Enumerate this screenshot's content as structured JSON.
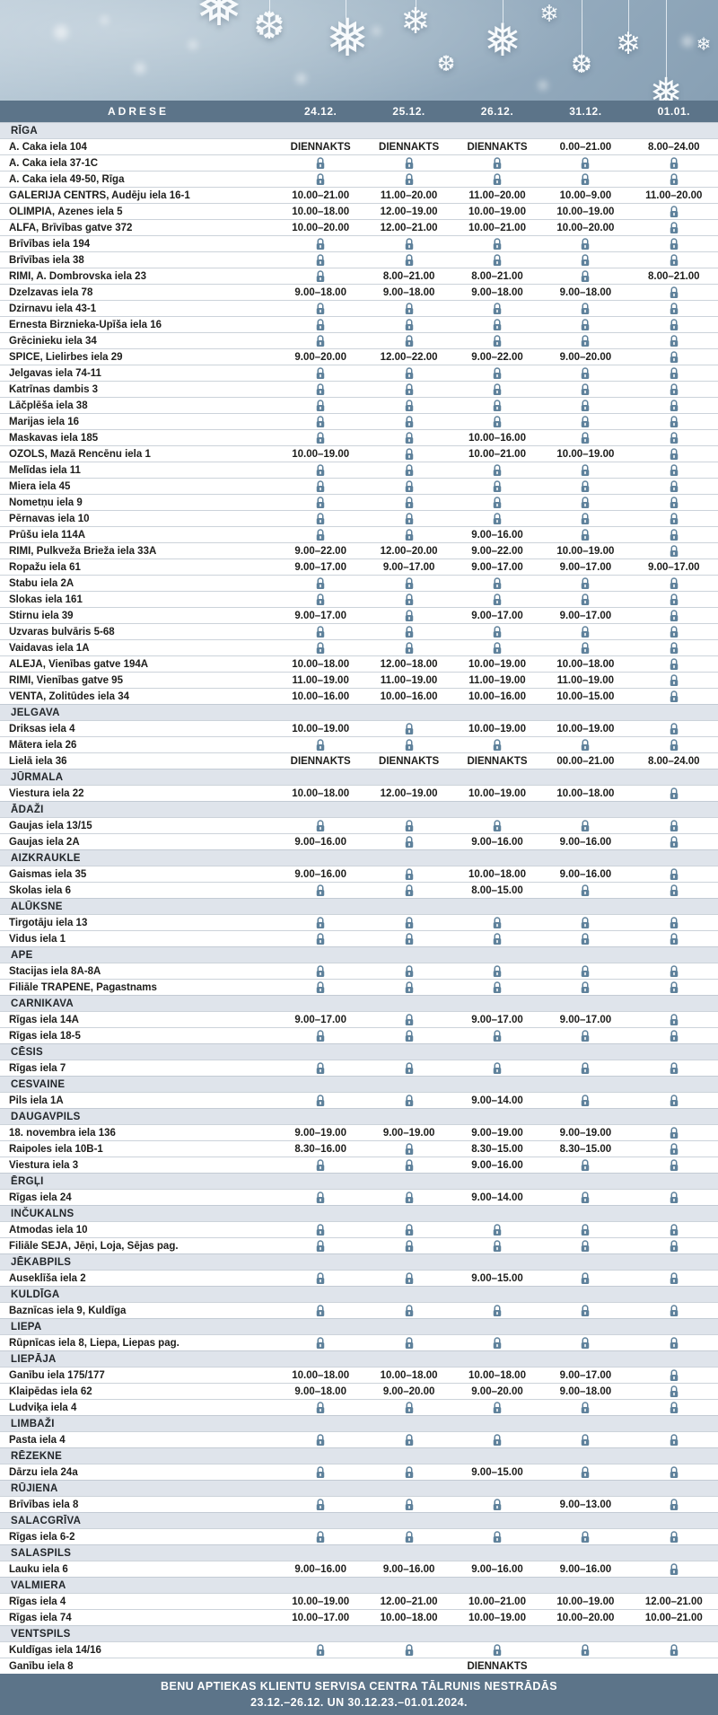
{
  "colors": {
    "header_bg": "#5c7489",
    "section_row_bg": "#dfe4eb",
    "lock_icon": "#5e819b",
    "banner_top": "#b9cad7",
    "banner_bottom": "#88a0b4"
  },
  "header": {
    "address_label": "ADRESE",
    "dates": [
      "24.12.",
      "25.12.",
      "26.12.",
      "31.12.",
      "01.01."
    ]
  },
  "closed_marker": "CLOSED",
  "sections": [
    {
      "name": "RĪGA",
      "rows": [
        {
          "address": "A. Čaka iela 104",
          "hours": [
            "DIENNAKTS",
            "DIENNAKTS",
            "DIENNAKTS",
            "0.00–21.00",
            "8.00–24.00"
          ]
        },
        {
          "address": "A. Čaka iela 37-1C",
          "hours": [
            "CLOSED",
            "CLOSED",
            "CLOSED",
            "CLOSED",
            "CLOSED"
          ]
        },
        {
          "address": "A. Čaka iela 49-50, Rīga",
          "hours": [
            "CLOSED",
            "CLOSED",
            "CLOSED",
            "CLOSED",
            "CLOSED"
          ]
        },
        {
          "address": "GALERIJA CENTRS, Audēju iela 16-1",
          "hours": [
            "10.00–21.00",
            "11.00–20.00",
            "11.00–20.00",
            "10.00–9.00",
            "11.00–20.00"
          ]
        },
        {
          "address": "OLIMPIA, Āzenes iela 5",
          "hours": [
            "10.00–18.00",
            "12.00–19.00",
            "10.00–19.00",
            "10.00–19.00",
            "CLOSED"
          ]
        },
        {
          "address": "ALFA, Brīvības gatve 372",
          "hours": [
            "10.00–20.00",
            "12.00–21.00",
            "10.00–21.00",
            "10.00–20.00",
            "CLOSED"
          ]
        },
        {
          "address": "Brīvības iela 194",
          "hours": [
            "CLOSED",
            "CLOSED",
            "CLOSED",
            "CLOSED",
            "CLOSED"
          ]
        },
        {
          "address": "Brīvības iela 38",
          "hours": [
            "CLOSED",
            "CLOSED",
            "CLOSED",
            "CLOSED",
            "CLOSED"
          ]
        },
        {
          "address": "RIMI, A. Dombrovska iela 23",
          "hours": [
            "CLOSED",
            "8.00–21.00",
            "8.00–21.00",
            "CLOSED",
            "8.00–21.00"
          ]
        },
        {
          "address": "Dzelzavas iela 78",
          "hours": [
            "9.00–18.00",
            "9.00–18.00",
            "9.00–18.00",
            "9.00–18.00",
            "CLOSED"
          ]
        },
        {
          "address": "Dzirnavu iela 43-1",
          "hours": [
            "CLOSED",
            "CLOSED",
            "CLOSED",
            "CLOSED",
            "CLOSED"
          ]
        },
        {
          "address": "Ernesta Birznieka-Upīša iela 16",
          "hours": [
            "CLOSED",
            "CLOSED",
            "CLOSED",
            "CLOSED",
            "CLOSED"
          ]
        },
        {
          "address": "Grēcinieku iela 34",
          "hours": [
            "CLOSED",
            "CLOSED",
            "CLOSED",
            "CLOSED",
            "CLOSED"
          ]
        },
        {
          "address": "SPICE, Lielirbes iela 29",
          "hours": [
            "9.00–20.00",
            "12.00–22.00",
            "9.00–22.00",
            "9.00–20.00",
            "CLOSED"
          ]
        },
        {
          "address": "Jelgavas iela 74-11",
          "hours": [
            "CLOSED",
            "CLOSED",
            "CLOSED",
            "CLOSED",
            "CLOSED"
          ]
        },
        {
          "address": "Katrīnas dambis 3",
          "hours": [
            "CLOSED",
            "CLOSED",
            "CLOSED",
            "CLOSED",
            "CLOSED"
          ]
        },
        {
          "address": "Lāčplēša iela 38",
          "hours": [
            "CLOSED",
            "CLOSED",
            "CLOSED",
            "CLOSED",
            "CLOSED"
          ]
        },
        {
          "address": "Marijas iela 16",
          "hours": [
            "CLOSED",
            "CLOSED",
            "CLOSED",
            "CLOSED",
            "CLOSED"
          ]
        },
        {
          "address": "Maskavas iela 185",
          "hours": [
            "CLOSED",
            "CLOSED",
            "10.00–16.00",
            "CLOSED",
            "CLOSED"
          ]
        },
        {
          "address": "OZOLS, Mazā Rencēnu iela 1",
          "hours": [
            "10.00–19.00",
            "CLOSED",
            "10.00–21.00",
            "10.00–19.00",
            "CLOSED"
          ]
        },
        {
          "address": "Melīdas iela 11",
          "hours": [
            "CLOSED",
            "CLOSED",
            "CLOSED",
            "CLOSED",
            "CLOSED"
          ]
        },
        {
          "address": "Miera iela 45",
          "hours": [
            "CLOSED",
            "CLOSED",
            "CLOSED",
            "CLOSED",
            "CLOSED"
          ]
        },
        {
          "address": "Nometņu iela 9",
          "hours": [
            "CLOSED",
            "CLOSED",
            "CLOSED",
            "CLOSED",
            "CLOSED"
          ]
        },
        {
          "address": "Pērnavas iela 10",
          "hours": [
            "CLOSED",
            "CLOSED",
            "CLOSED",
            "CLOSED",
            "CLOSED"
          ]
        },
        {
          "address": "Prūšu iela 114A",
          "hours": [
            "CLOSED",
            "CLOSED",
            "9.00–16.00",
            "CLOSED",
            "CLOSED"
          ]
        },
        {
          "address": "RIMI, Pulkveža Brieža iela 33A",
          "hours": [
            "9.00–22.00",
            "12.00–20.00",
            "9.00–22.00",
            "10.00–19.00",
            "CLOSED"
          ]
        },
        {
          "address": "Ropažu iela 61",
          "hours": [
            "9.00–17.00",
            "9.00–17.00",
            "9.00–17.00",
            "9.00–17.00",
            "9.00–17.00"
          ]
        },
        {
          "address": "Stabu iela 2A",
          "hours": [
            "CLOSED",
            "CLOSED",
            "CLOSED",
            "CLOSED",
            "CLOSED"
          ]
        },
        {
          "address": "Slokas iela 161",
          "hours": [
            "CLOSED",
            "CLOSED",
            "CLOSED",
            "CLOSED",
            "CLOSED"
          ]
        },
        {
          "address": "Stirnu iela 39",
          "hours": [
            "9.00–17.00",
            "CLOSED",
            "9.00–17.00",
            "9.00–17.00",
            "CLOSED"
          ]
        },
        {
          "address": "Uzvaras bulvāris 5-68",
          "hours": [
            "CLOSED",
            "CLOSED",
            "CLOSED",
            "CLOSED",
            "CLOSED"
          ]
        },
        {
          "address": "Vaidavas iela 1A",
          "hours": [
            "CLOSED",
            "CLOSED",
            "CLOSED",
            "CLOSED",
            "CLOSED"
          ]
        },
        {
          "address": "ALEJA, Vienības gatve 194A",
          "hours": [
            "10.00–18.00",
            "12.00–18.00",
            "10.00–19.00",
            "10.00–18.00",
            "CLOSED"
          ]
        },
        {
          "address": "RIMI, Vienības gatve 95",
          "hours": [
            "11.00–19.00",
            "11.00–19.00",
            "11.00–19.00",
            "11.00–19.00",
            "CLOSED"
          ]
        },
        {
          "address": "VENTA, Zolitūdes iela 34",
          "hours": [
            "10.00–16.00",
            "10.00–16.00",
            "10.00–16.00",
            "10.00–15.00",
            "CLOSED"
          ]
        }
      ]
    },
    {
      "name": "JELGAVA",
      "rows": [
        {
          "address": "Driksas iela 4",
          "hours": [
            "10.00–19.00",
            "CLOSED",
            "10.00–19.00",
            "10.00–19.00",
            "CLOSED"
          ]
        },
        {
          "address": "Mātera iela 26",
          "hours": [
            "CLOSED",
            "CLOSED",
            "CLOSED",
            "CLOSED",
            "CLOSED"
          ]
        },
        {
          "address": "Lielā iela 36",
          "hours": [
            "DIENNAKTS",
            "DIENNAKTS",
            "DIENNAKTS",
            "00.00–21.00",
            "8.00–24.00"
          ]
        }
      ]
    },
    {
      "name": "JŪRMALA",
      "rows": [
        {
          "address": "Viestura iela 22",
          "hours": [
            "10.00–18.00",
            "12.00–19.00",
            "10.00–19.00",
            "10.00–18.00",
            "CLOSED"
          ]
        }
      ]
    },
    {
      "name": "ĀDAŽI",
      "rows": [
        {
          "address": "Gaujas iela 13/15",
          "hours": [
            "CLOSED",
            "CLOSED",
            "CLOSED",
            "CLOSED",
            "CLOSED"
          ]
        },
        {
          "address": "Gaujas iela 2A",
          "hours": [
            "9.00–16.00",
            "CLOSED",
            "9.00–16.00",
            "9.00–16.00",
            "CLOSED"
          ]
        }
      ]
    },
    {
      "name": "AIZKRAUKLE",
      "rows": [
        {
          "address": "Gaismas iela 35",
          "hours": [
            "9.00–16.00",
            "CLOSED",
            "10.00–18.00",
            "9.00–16.00",
            "CLOSED"
          ]
        },
        {
          "address": "Skolas iela 6",
          "hours": [
            "CLOSED",
            "CLOSED",
            "8.00–15.00",
            "CLOSED",
            "CLOSED"
          ]
        }
      ]
    },
    {
      "name": "ALŪKSNE",
      "rows": [
        {
          "address": "Tirgotāju iela 13",
          "hours": [
            "CLOSED",
            "CLOSED",
            "CLOSED",
            "CLOSED",
            "CLOSED"
          ]
        },
        {
          "address": "Vidus iela 1",
          "hours": [
            "CLOSED",
            "CLOSED",
            "CLOSED",
            "CLOSED",
            "CLOSED"
          ]
        }
      ]
    },
    {
      "name": "APE",
      "rows": [
        {
          "address": "Stacijas iela 8A-8A",
          "hours": [
            "CLOSED",
            "CLOSED",
            "CLOSED",
            "CLOSED",
            "CLOSED"
          ]
        },
        {
          "address": "Filiāle TRAPENE, Pagastnams",
          "hours": [
            "CLOSED",
            "CLOSED",
            "CLOSED",
            "CLOSED",
            "CLOSED"
          ]
        }
      ]
    },
    {
      "name": "CARNIKAVA",
      "rows": [
        {
          "address": "Rīgas iela 14A",
          "hours": [
            "9.00–17.00",
            "CLOSED",
            "9.00–17.00",
            "9.00–17.00",
            "CLOSED"
          ]
        },
        {
          "address": "Rīgas iela 18-5",
          "hours": [
            "CLOSED",
            "CLOSED",
            "CLOSED",
            "CLOSED",
            "CLOSED"
          ]
        }
      ]
    },
    {
      "name": "CĒSIS",
      "rows": [
        {
          "address": "Rīgas iela 7",
          "hours": [
            "CLOSED",
            "CLOSED",
            "CLOSED",
            "CLOSED",
            "CLOSED"
          ]
        }
      ]
    },
    {
      "name": "CESVAINE",
      "rows": [
        {
          "address": "Pils iela 1A",
          "hours": [
            "CLOSED",
            "CLOSED",
            "9.00–14.00",
            "CLOSED",
            "CLOSED"
          ]
        }
      ]
    },
    {
      "name": "DAUGAVPILS",
      "rows": [
        {
          "address": "18. novembra iela 136",
          "hours": [
            "9.00–19.00",
            "9.00–19.00",
            "9.00–19.00",
            "9.00–19.00",
            "CLOSED"
          ]
        },
        {
          "address": "Raipoles iela 10B-1",
          "hours": [
            "8.30–16.00",
            "CLOSED",
            "8.30–15.00",
            "8.30–15.00",
            "CLOSED"
          ]
        },
        {
          "address": "Viestura iela 3",
          "hours": [
            "CLOSED",
            "CLOSED",
            "9.00–16.00",
            "CLOSED",
            "CLOSED"
          ]
        }
      ]
    },
    {
      "name": "ĒRGĻI",
      "rows": [
        {
          "address": "Rīgas iela 24",
          "hours": [
            "CLOSED",
            "CLOSED",
            "9.00–14.00",
            "CLOSED",
            "CLOSED"
          ]
        }
      ]
    },
    {
      "name": "INČUKALNS",
      "rows": [
        {
          "address": "Atmodas iela 10",
          "hours": [
            "CLOSED",
            "CLOSED",
            "CLOSED",
            "CLOSED",
            "CLOSED"
          ]
        },
        {
          "address": "Filiāle SĒJA, Jēņi, Loja, Sējas pag.",
          "hours": [
            "CLOSED",
            "CLOSED",
            "CLOSED",
            "CLOSED",
            "CLOSED"
          ]
        }
      ]
    },
    {
      "name": "JĒKABPILS",
      "rows": [
        {
          "address": "Auseklīša iela 2",
          "hours": [
            "CLOSED",
            "CLOSED",
            "9.00–15.00",
            "CLOSED",
            "CLOSED"
          ]
        }
      ]
    },
    {
      "name": "KULDĪGA",
      "rows": [
        {
          "address": "Baznīcas iela 9, Kuldīga",
          "hours": [
            "CLOSED",
            "CLOSED",
            "CLOSED",
            "CLOSED",
            "CLOSED"
          ]
        }
      ]
    },
    {
      "name": "LIEPA",
      "rows": [
        {
          "address": "Rūpnīcas iela 8, Liepa, Liepas pag.",
          "hours": [
            "CLOSED",
            "CLOSED",
            "CLOSED",
            "CLOSED",
            "CLOSED"
          ]
        }
      ]
    },
    {
      "name": "LIEPĀJA",
      "rows": [
        {
          "address": "Ganību iela 175/177",
          "hours": [
            "10.00–18.00",
            "10.00–18.00",
            "10.00–18.00",
            "9.00–17.00",
            "CLOSED"
          ]
        },
        {
          "address": "Klaipēdas iela 62",
          "hours": [
            "9.00–18.00",
            "9.00–20.00",
            "9.00–20.00",
            "9.00–18.00",
            "CLOSED"
          ]
        },
        {
          "address": "Ludviķa iela 4",
          "hours": [
            "CLOSED",
            "CLOSED",
            "CLOSED",
            "CLOSED",
            "CLOSED"
          ]
        }
      ]
    },
    {
      "name": "LIMBAŽI",
      "rows": [
        {
          "address": "Pasta iela 4",
          "hours": [
            "CLOSED",
            "CLOSED",
            "CLOSED",
            "CLOSED",
            "CLOSED"
          ]
        }
      ]
    },
    {
      "name": "RĒZEKNE",
      "rows": [
        {
          "address": "Dārzu iela 24a",
          "hours": [
            "CLOSED",
            "CLOSED",
            "9.00–15.00",
            "CLOSED",
            "CLOSED"
          ]
        }
      ]
    },
    {
      "name": "RŪJIENA",
      "rows": [
        {
          "address": "Brīvības iela 8",
          "hours": [
            "CLOSED",
            "CLOSED",
            "CLOSED",
            "9.00–13.00",
            "CLOSED"
          ]
        }
      ]
    },
    {
      "name": "SALACGRĪVA",
      "rows": [
        {
          "address": "Rīgas iela 6-2",
          "hours": [
            "CLOSED",
            "CLOSED",
            "CLOSED",
            "CLOSED",
            "CLOSED"
          ]
        }
      ]
    },
    {
      "name": "SALASPILS",
      "rows": [
        {
          "address": "Lauku iela 6",
          "hours": [
            "9.00–16.00",
            "9.00–16.00",
            "9.00–16.00",
            "9.00–16.00",
            "CLOSED"
          ]
        }
      ]
    },
    {
      "name": "VALMIERA",
      "rows": [
        {
          "address": "Rīgas iela 4",
          "hours": [
            "10.00–19.00",
            "12.00–21.00",
            "10.00–21.00",
            "10.00–19.00",
            "12.00–21.00"
          ]
        },
        {
          "address": "Rīgas iela 74",
          "hours": [
            "10.00–17.00",
            "10.00–18.00",
            "10.00–19.00",
            "10.00–20.00",
            "10.00–21.00"
          ]
        }
      ]
    },
    {
      "name": "VENTSPILS",
      "rows": [
        {
          "address": "Kuldīgas iela 14/16",
          "hours": [
            "CLOSED",
            "CLOSED",
            "CLOSED",
            "CLOSED",
            "CLOSED"
          ]
        },
        {
          "address": "Ganību iela 8",
          "hours": [
            "",
            "",
            "DIENNAKTS",
            "",
            ""
          ]
        }
      ]
    }
  ],
  "footer": {
    "line1": "BENU APTIEKAS KLIENTU SERVISA CENTRA TĀLRUNIS NESTRĀDĀS",
    "line2": "23.12.–26.12. UN 30.12.23.–01.01.2024."
  }
}
